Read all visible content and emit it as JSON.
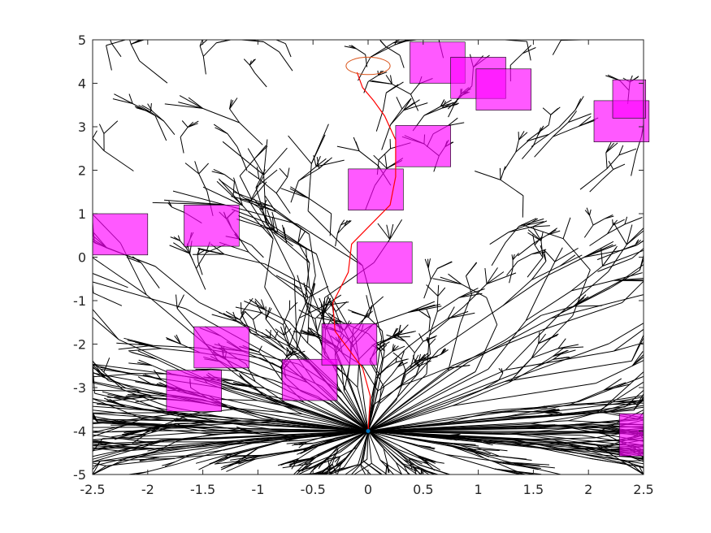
{
  "chart_data": {
    "type": "scatter",
    "title": "",
    "xlabel": "",
    "ylabel": "",
    "xlim": [
      -2.5,
      2.5
    ],
    "ylim": [
      -5,
      5
    ],
    "x_ticks": [
      "-2.5",
      "-2",
      "-1.5",
      "-1",
      "-0.5",
      "0",
      "0.5",
      "1",
      "1.5",
      "2",
      "2.5"
    ],
    "y_ticks": [
      "5",
      "4",
      "3",
      "2",
      "1",
      "0",
      "-1",
      "-2",
      "-3",
      "-4",
      "-5"
    ],
    "grid": false,
    "start": {
      "x": 0.0,
      "y": -4.0
    },
    "goal": {
      "x": 0.0,
      "y": 4.4,
      "radius": 0.2
    },
    "obstacles": [
      {
        "x": -2.5,
        "y": 0.05,
        "w": 0.5,
        "h": 0.95,
        "color": "#ff00ff"
      },
      {
        "x": -1.67,
        "y": 0.25,
        "w": 0.5,
        "h": 0.95,
        "color": "#ff00ff"
      },
      {
        "x": -1.58,
        "y": -2.55,
        "w": 0.5,
        "h": 0.95,
        "color": "#ff00ff"
      },
      {
        "x": -1.83,
        "y": -3.55,
        "w": 0.5,
        "h": 0.95,
        "color": "#ff00ff"
      },
      {
        "x": -0.78,
        "y": -3.3,
        "w": 0.5,
        "h": 0.95,
        "color": "#ff00ff"
      },
      {
        "x": -0.42,
        "y": -2.48,
        "w": 0.5,
        "h": 0.95,
        "color": "#ff00ff"
      },
      {
        "x": -0.1,
        "y": -0.6,
        "w": 0.5,
        "h": 0.95,
        "color": "#ff00ff"
      },
      {
        "x": -0.18,
        "y": 1.08,
        "w": 0.5,
        "h": 0.95,
        "color": "#ff00ff"
      },
      {
        "x": 0.25,
        "y": 2.08,
        "w": 0.5,
        "h": 0.95,
        "color": "#ff00ff"
      },
      {
        "x": 0.38,
        "y": 4.0,
        "w": 0.5,
        "h": 0.95,
        "color": "#ff00ff"
      },
      {
        "x": 0.75,
        "y": 3.65,
        "w": 0.5,
        "h": 0.95,
        "color": "#ff00ff"
      },
      {
        "x": 0.98,
        "y": 3.38,
        "w": 0.5,
        "h": 0.95,
        "color": "#ff00ff"
      },
      {
        "x": 2.05,
        "y": 2.65,
        "w": 0.5,
        "h": 0.95,
        "color": "#ff00ff"
      },
      {
        "x": 2.22,
        "y": 3.2,
        "w": 0.3,
        "h": 0.88,
        "color": "#ff00ff"
      },
      {
        "x": 2.28,
        "y": -4.58,
        "w": 0.22,
        "h": 0.98,
        "color": "#ff00ff"
      }
    ],
    "path": [
      {
        "x": 0.0,
        "y": -4.0
      },
      {
        "x": 0.02,
        "y": -3.2
      },
      {
        "x": -0.05,
        "y": -2.55
      },
      {
        "x": -0.3,
        "y": -1.7
      },
      {
        "x": -0.32,
        "y": -1.05
      },
      {
        "x": -0.18,
        "y": -0.35
      },
      {
        "x": -0.15,
        "y": 0.3
      },
      {
        "x": 0.2,
        "y": 1.2
      },
      {
        "x": 0.25,
        "y": 1.85
      },
      {
        "x": 0.25,
        "y": 2.7
      },
      {
        "x": 0.15,
        "y": 3.25
      },
      {
        "x": 0.05,
        "y": 3.6
      },
      {
        "x": -0.05,
        "y": 3.9
      },
      {
        "x": -0.1,
        "y": 4.25
      }
    ]
  }
}
